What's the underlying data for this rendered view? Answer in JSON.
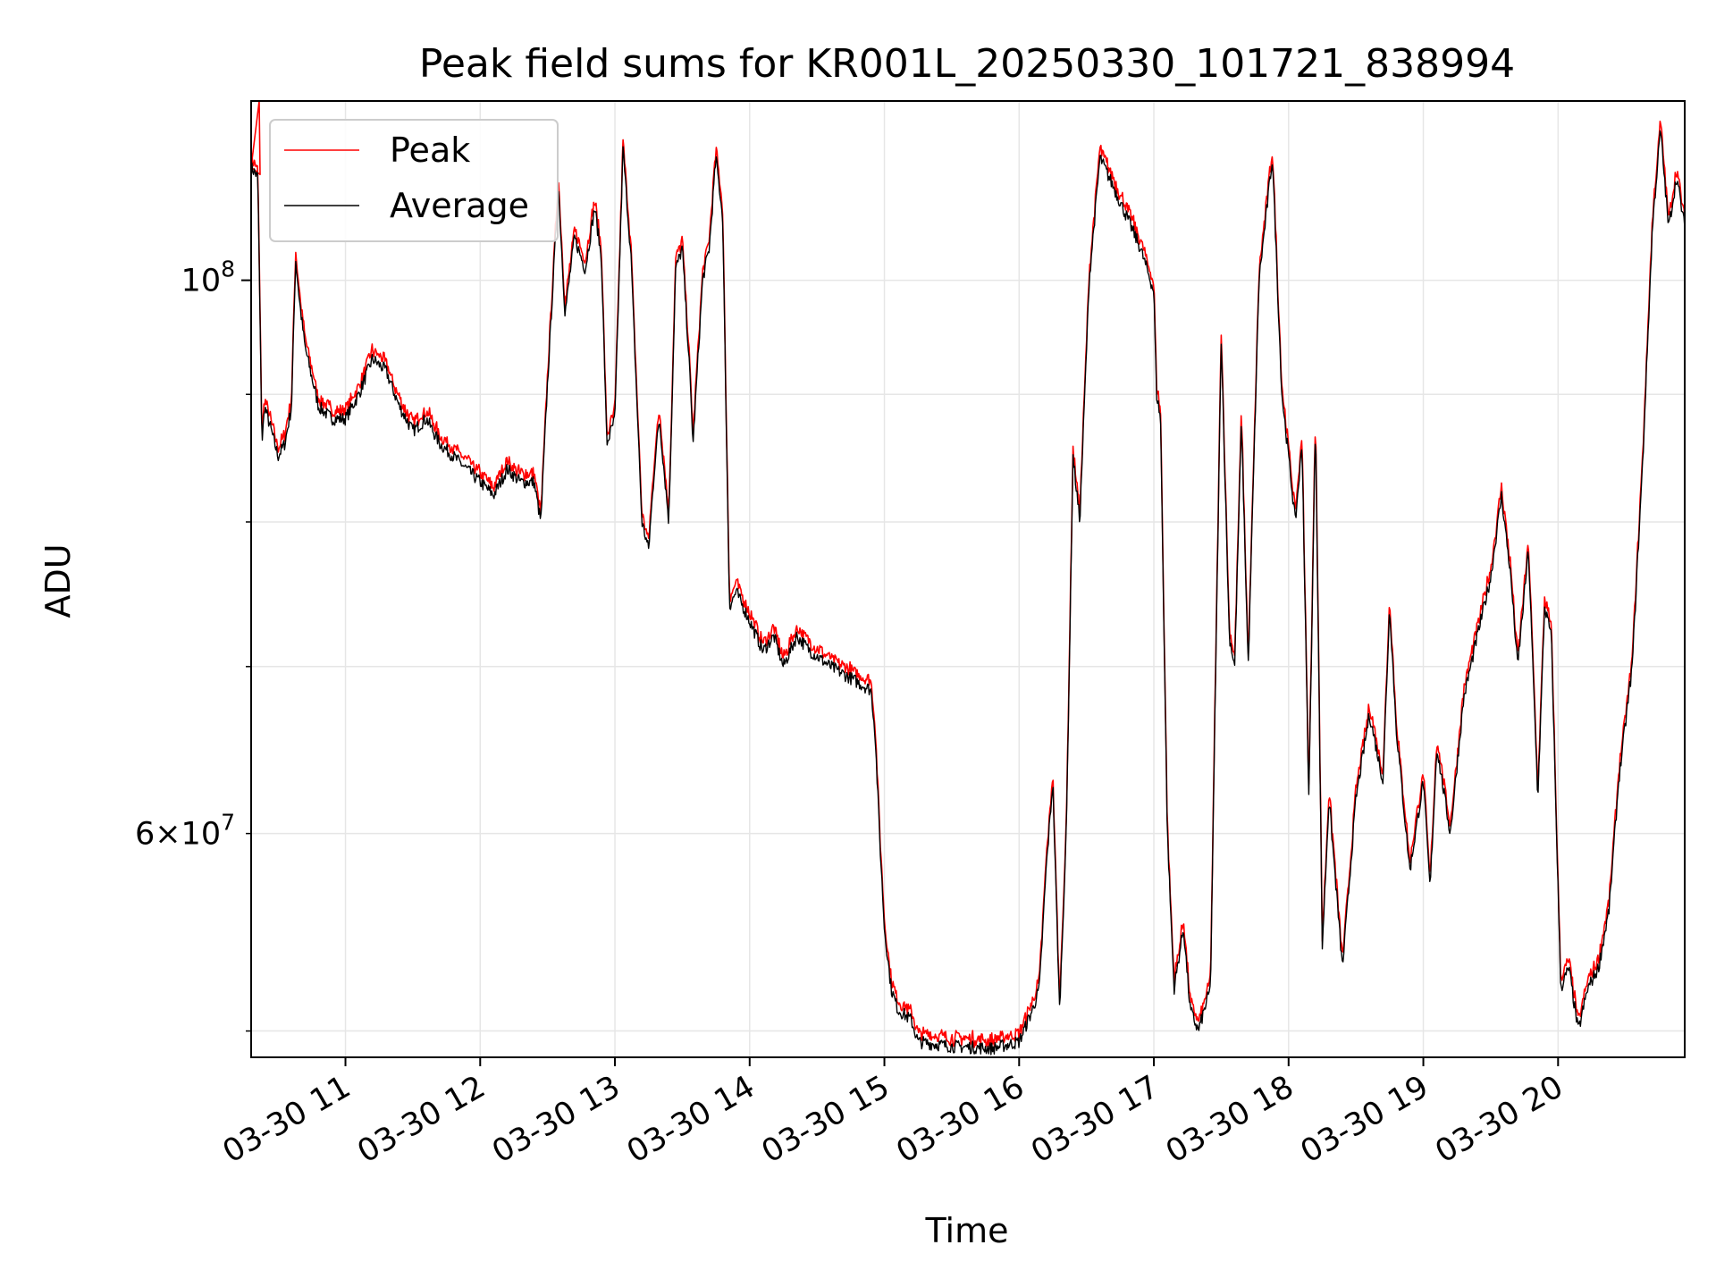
{
  "chart_data": {
    "type": "line",
    "title": "Peak field sums for KR001L_20250330_101721_838994",
    "xlabel": "Time",
    "ylabel": "ADU",
    "yscale": "log",
    "xlim": [
      10.3,
      20.94
    ],
    "ylim": [
      48800000,
      118000000
    ],
    "grid": true,
    "x_ticks": [
      {
        "value": 11,
        "label": "03-30 11"
      },
      {
        "value": 12,
        "label": "03-30 12"
      },
      {
        "value": 13,
        "label": "03-30 13"
      },
      {
        "value": 14,
        "label": "03-30 14"
      },
      {
        "value": 15,
        "label": "03-30 15"
      },
      {
        "value": 16,
        "label": "03-30 16"
      },
      {
        "value": 17,
        "label": "03-30 17"
      },
      {
        "value": 18,
        "label": "03-30 18"
      },
      {
        "value": 19,
        "label": "03-30 19"
      },
      {
        "value": 20,
        "label": "03-30 20"
      }
    ],
    "y_major_ticks": [
      {
        "value": 100000000,
        "base": "10",
        "exp": "8"
      }
    ],
    "y_minor_labeled": [
      {
        "value": 60000000,
        "mant": "6",
        "base": "10",
        "exp": "7"
      }
    ],
    "y_minor_ticks": [
      50000000,
      60000000,
      70000000,
      80000000,
      90000000
    ],
    "legend": {
      "position": "upper-left",
      "entries": [
        {
          "name": "Peak",
          "color": "#ff0000"
        },
        {
          "name": "Average",
          "color": "#000000"
        }
      ]
    },
    "series": [
      {
        "name": "Peak",
        "color": "#ff0000",
        "peak_offset": 1.006,
        "spike": {
          "x": 10.36,
          "y": 118000000
        }
      },
      {
        "name": "Average",
        "color": "#000000"
      }
    ],
    "anchors": [
      [
        10.3,
        111000000
      ],
      [
        10.35,
        110000000
      ],
      [
        10.38,
        86000000
      ],
      [
        10.4,
        89000000
      ],
      [
        10.45,
        87000000
      ],
      [
        10.5,
        85000000
      ],
      [
        10.55,
        86000000
      ],
      [
        10.6,
        89000000
      ],
      [
        10.63,
        102000000
      ],
      [
        10.66,
        98000000
      ],
      [
        10.7,
        94000000
      ],
      [
        10.8,
        89000000
      ],
      [
        10.9,
        88000000
      ],
      [
        11.0,
        88000000
      ],
      [
        11.1,
        90000000
      ],
      [
        11.2,
        93000000
      ],
      [
        11.3,
        92000000
      ],
      [
        11.4,
        89000000
      ],
      [
        11.5,
        87000000
      ],
      [
        11.6,
        88000000
      ],
      [
        11.7,
        86000000
      ],
      [
        11.8,
        85000000
      ],
      [
        11.9,
        84000000
      ],
      [
        12.0,
        83000000
      ],
      [
        12.1,
        82000000
      ],
      [
        12.2,
        84000000
      ],
      [
        12.3,
        83000000
      ],
      [
        12.4,
        83000000
      ],
      [
        12.45,
        80000000
      ],
      [
        12.5,
        91000000
      ],
      [
        12.58,
        109000000
      ],
      [
        12.63,
        97000000
      ],
      [
        12.7,
        104000000
      ],
      [
        12.78,
        101000000
      ],
      [
        12.85,
        107000000
      ],
      [
        12.9,
        102000000
      ],
      [
        12.94,
        86000000
      ],
      [
        13.0,
        88000000
      ],
      [
        13.06,
        113000000
      ],
      [
        13.12,
        102000000
      ],
      [
        13.2,
        80000000
      ],
      [
        13.25,
        78000000
      ],
      [
        13.3,
        85000000
      ],
      [
        13.33,
        88000000
      ],
      [
        13.4,
        80000000
      ],
      [
        13.45,
        101000000
      ],
      [
        13.5,
        103000000
      ],
      [
        13.55,
        93000000
      ],
      [
        13.58,
        86000000
      ],
      [
        13.65,
        100000000
      ],
      [
        13.7,
        103000000
      ],
      [
        13.75,
        112000000
      ],
      [
        13.8,
        106000000
      ],
      [
        13.85,
        74000000
      ],
      [
        13.9,
        75000000
      ],
      [
        14.0,
        73000000
      ],
      [
        14.1,
        71000000
      ],
      [
        14.18,
        72000000
      ],
      [
        14.25,
        70000000
      ],
      [
        14.35,
        72000000
      ],
      [
        14.45,
        71000000
      ],
      [
        14.6,
        70000000
      ],
      [
        14.8,
        69000000
      ],
      [
        14.9,
        68500000
      ],
      [
        14.93,
        66000000
      ],
      [
        14.97,
        59000000
      ],
      [
        15.0,
        55000000
      ],
      [
        15.05,
        52000000
      ],
      [
        15.1,
        51000000
      ],
      [
        15.2,
        50500000
      ],
      [
        15.25,
        49500000
      ],
      [
        15.5,
        49300000
      ],
      [
        15.8,
        49200000
      ],
      [
        16.0,
        49500000
      ],
      [
        16.1,
        51000000
      ],
      [
        16.15,
        52000000
      ],
      [
        16.2,
        58000000
      ],
      [
        16.25,
        63000000
      ],
      [
        16.3,
        51000000
      ],
      [
        16.35,
        60000000
      ],
      [
        16.4,
        85000000
      ],
      [
        16.45,
        80000000
      ],
      [
        16.52,
        100000000
      ],
      [
        16.6,
        112000000
      ],
      [
        16.7,
        109000000
      ],
      [
        16.8,
        106000000
      ],
      [
        16.9,
        103000000
      ],
      [
        17.0,
        99000000
      ],
      [
        17.02,
        90000000
      ],
      [
        17.05,
        88000000
      ],
      [
        17.1,
        60000000
      ],
      [
        17.15,
        52000000
      ],
      [
        17.22,
        55000000
      ],
      [
        17.27,
        51000000
      ],
      [
        17.33,
        50000000
      ],
      [
        17.42,
        52000000
      ],
      [
        17.5,
        95000000
      ],
      [
        17.56,
        72000000
      ],
      [
        17.6,
        70000000
      ],
      [
        17.65,
        88000000
      ],
      [
        17.7,
        70000000
      ],
      [
        17.78,
        100000000
      ],
      [
        17.88,
        112000000
      ],
      [
        17.95,
        90000000
      ],
      [
        18.0,
        85000000
      ],
      [
        18.05,
        80000000
      ],
      [
        18.1,
        86000000
      ],
      [
        18.15,
        62000000
      ],
      [
        18.2,
        88000000
      ],
      [
        18.25,
        54000000
      ],
      [
        18.3,
        62000000
      ],
      [
        18.4,
        53000000
      ],
      [
        18.5,
        62000000
      ],
      [
        18.6,
        67000000
      ],
      [
        18.7,
        63000000
      ],
      [
        18.75,
        74000000
      ],
      [
        18.8,
        66000000
      ],
      [
        18.9,
        58000000
      ],
      [
        19.0,
        63000000
      ],
      [
        19.05,
        57000000
      ],
      [
        19.1,
        65000000
      ],
      [
        19.2,
        60000000
      ],
      [
        19.3,
        68000000
      ],
      [
        19.4,
        72000000
      ],
      [
        19.5,
        76000000
      ],
      [
        19.58,
        82000000
      ],
      [
        19.65,
        76000000
      ],
      [
        19.7,
        70000000
      ],
      [
        19.78,
        78000000
      ],
      [
        19.85,
        62000000
      ],
      [
        19.9,
        74000000
      ],
      [
        19.95,
        72000000
      ],
      [
        20.02,
        52000000
      ],
      [
        20.08,
        53000000
      ],
      [
        20.15,
        50000000
      ],
      [
        20.22,
        52000000
      ],
      [
        20.3,
        53000000
      ],
      [
        20.38,
        56000000
      ],
      [
        20.45,
        63000000
      ],
      [
        20.55,
        70000000
      ],
      [
        20.63,
        85000000
      ],
      [
        20.7,
        105000000
      ],
      [
        20.76,
        115000000
      ],
      [
        20.82,
        105000000
      ],
      [
        20.88,
        110000000
      ],
      [
        20.94,
        105000000
      ]
    ]
  }
}
